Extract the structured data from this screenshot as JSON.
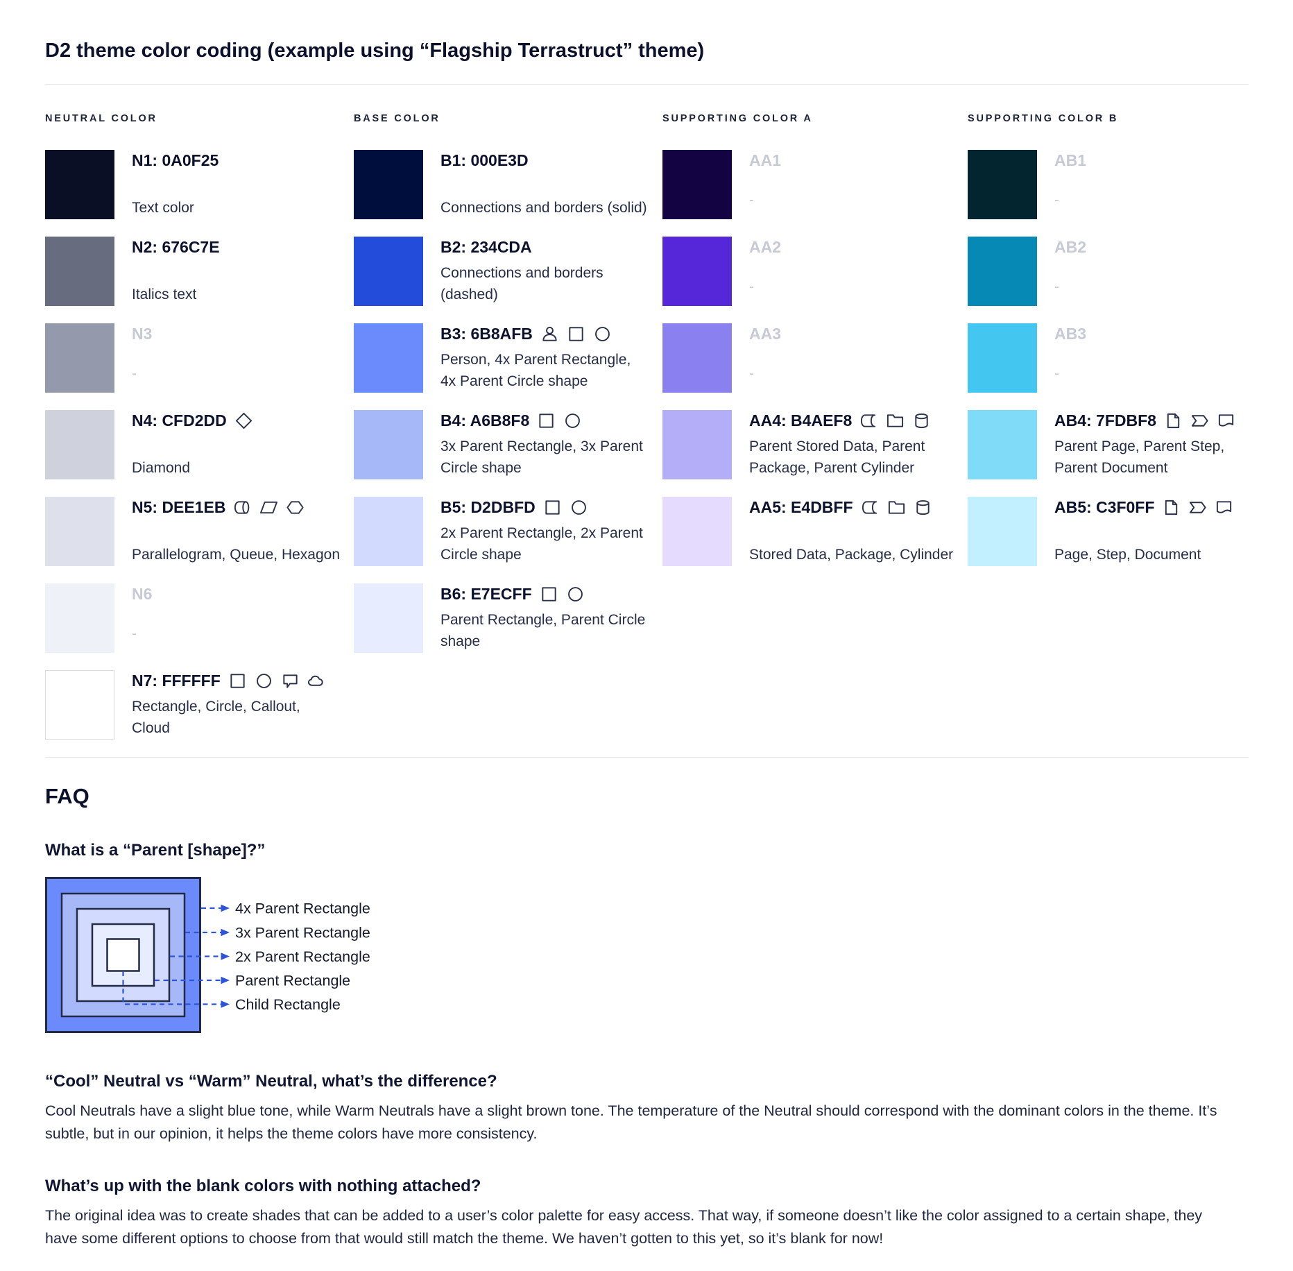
{
  "title": "D2 theme color coding (example using “Flagship Terrastruct” theme)",
  "colors": {
    "text": "#0A0F25",
    "muted_label": "#C7CAD5",
    "divider": "#E3E5EB",
    "dash_line": "#2D54D6",
    "icon_stroke": "#2B3248"
  },
  "columns": [
    {
      "header": "NEUTRAL COLOR",
      "items": [
        {
          "label": "N1: 0A0F25",
          "hex": "#0A0F25",
          "desc": "Text color",
          "icons": [],
          "muted": false
        },
        {
          "label": "N2: 676C7E",
          "hex": "#676C7E",
          "desc": "Italics text",
          "icons": [],
          "muted": false
        },
        {
          "label": "N3",
          "hex": "#9499AB",
          "desc": "-",
          "icons": [],
          "muted": true
        },
        {
          "label": "N4: CFD2DD",
          "hex": "#CFD2DD",
          "desc": "Diamond",
          "icons": [
            "diamond-icon"
          ],
          "muted": false
        },
        {
          "label": "N5: DEE1EB",
          "hex": "#DEE1EB",
          "desc": "Parallelogram, Queue, Hexagon",
          "icons": [
            "queue-icon",
            "parallelogram-icon",
            "hexagon-icon"
          ],
          "muted": false
        },
        {
          "label": "N6",
          "hex": "#EEF1F8",
          "desc": "-",
          "icons": [],
          "muted": true
        },
        {
          "label": "N7: FFFFFF",
          "hex": "#FFFFFF",
          "desc": "Rectangle, Circle, Callout, Cloud",
          "icons": [
            "square-icon",
            "circle-icon",
            "callout-icon",
            "cloud-icon"
          ],
          "muted": false
        }
      ]
    },
    {
      "header": "BASE COLOR",
      "items": [
        {
          "label": "B1: 000E3D",
          "hex": "#000E3D",
          "desc": "Connections and borders (solid)",
          "icons": [],
          "muted": false
        },
        {
          "label": "B2: 234CDA",
          "hex": "#234CDA",
          "desc": "Connections and borders (dashed)",
          "icons": [],
          "muted": false
        },
        {
          "label": "B3: 6B8AFB",
          "hex": "#6B8AFB",
          "desc": "Person, 4x Parent Rectangle, 4x Parent Circle shape",
          "icons": [
            "person-icon",
            "square-icon",
            "circle-icon"
          ],
          "muted": false
        },
        {
          "label": "B4: A6B8F8",
          "hex": "#A6B8F8",
          "desc": "3x Parent Rectangle, 3x Parent Circle shape",
          "icons": [
            "square-icon",
            "circle-icon"
          ],
          "muted": false
        },
        {
          "label": "B5: D2DBFD",
          "hex": "#D2DBFD",
          "desc": "2x Parent Rectangle, 2x Parent Circle shape",
          "icons": [
            "square-icon",
            "circle-icon"
          ],
          "muted": false
        },
        {
          "label": "B6: E7ECFF",
          "hex": "#E7ECFF",
          "desc": "Parent Rectangle, Parent Circle shape",
          "icons": [
            "square-icon",
            "circle-icon"
          ],
          "muted": false
        }
      ]
    },
    {
      "header": "SUPPORTING COLOR A",
      "items": [
        {
          "label": "AA1",
          "hex": "#130342",
          "desc": "-",
          "icons": [],
          "muted": true
        },
        {
          "label": "AA2",
          "hex": "#5527D8",
          "desc": "-",
          "icons": [],
          "muted": true
        },
        {
          "label": "AA3",
          "hex": "#8B80F0",
          "desc": "-",
          "icons": [],
          "muted": true
        },
        {
          "label": "AA4: B4AEF8",
          "hex": "#B4AEF8",
          "desc": "Parent Stored Data, Parent Package, Parent Cylinder",
          "icons": [
            "stored-data-icon",
            "package-icon",
            "cylinder-icon"
          ],
          "muted": false
        },
        {
          "label": "AA5: E4DBFF",
          "hex": "#E4DBFF",
          "desc": "Stored Data, Package, Cylinder",
          "icons": [
            "stored-data-icon",
            "package-icon",
            "cylinder-icon"
          ],
          "muted": false
        }
      ]
    },
    {
      "header": "SUPPORTING COLOR B",
      "items": [
        {
          "label": "AB1",
          "hex": "#032530",
          "desc": "-",
          "icons": [],
          "muted": true
        },
        {
          "label": "AB2",
          "hex": "#0689B4",
          "desc": "-",
          "icons": [],
          "muted": true
        },
        {
          "label": "AB3",
          "hex": "#43C7F0",
          "desc": "-",
          "icons": [],
          "muted": true
        },
        {
          "label": "AB4: 7FDBF8",
          "hex": "#7FDBF8",
          "desc": "Parent Page, Parent Step, Parent Document",
          "icons": [
            "page-icon",
            "step-icon",
            "document-icon"
          ],
          "muted": false
        },
        {
          "label": "AB5: C3F0FF",
          "hex": "#C3F0FF",
          "desc": "Page, Step, Document",
          "icons": [
            "page-icon",
            "step-icon",
            "document-icon"
          ],
          "muted": false
        }
      ]
    }
  ],
  "faq": {
    "heading": "FAQ",
    "q1": {
      "question": "What is a “Parent [shape]?”",
      "diagram": {
        "layers": [
          {
            "label": "4x Parent Rectangle",
            "fill": "#6B8AFB"
          },
          {
            "label": "3x Parent Rectangle",
            "fill": "#A6B8F8"
          },
          {
            "label": "2x Parent Rectangle",
            "fill": "#D2DBFD"
          },
          {
            "label": "Parent Rectangle",
            "fill": "#E7ECFF"
          },
          {
            "label": "Child Rectangle",
            "fill": "#FFFFFF"
          }
        ]
      }
    },
    "q2": {
      "question": "“Cool” Neutral vs “Warm” Neutral, what’s the difference?",
      "answer": "Cool Neutrals have a slight blue tone, while Warm Neutrals have a slight brown tone. The temperature of the Neutral should correspond with the dominant colors in the theme. It’s subtle, but in our opinion, it helps the theme colors have more consistency."
    },
    "q3": {
      "question": "What’s up with the blank colors with nothing attached?",
      "answer": "The original idea was to create shades that can be added to a user’s color palette for easy access. That way, if someone doesn’t like the color assigned to a certain shape, they have some different options to choose from that would still match the theme. We haven’t gotten to this yet, so it’s blank for now!"
    }
  }
}
